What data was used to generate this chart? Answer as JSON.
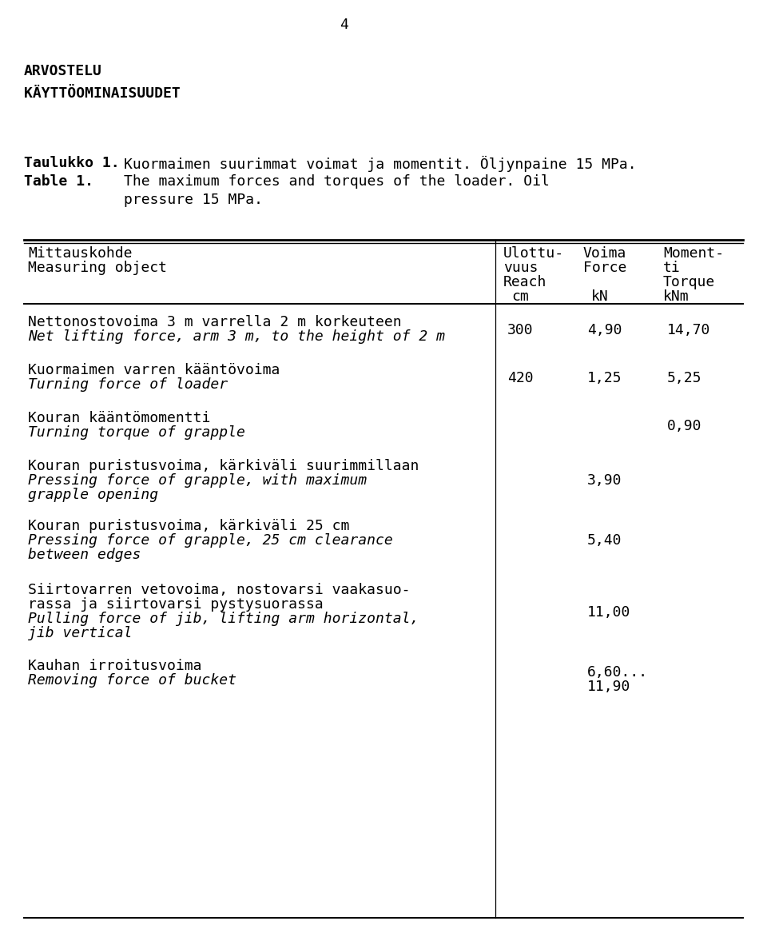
{
  "page_number": "4",
  "header1": "ARVOSTELU",
  "header2": "KÄYTTÖOMINAISUUDET",
  "table_label_fi": "Taulukko 1.",
  "table_label_en": "Table 1.",
  "table_desc_fi": "Kuormaimen suurimmat voimat ja momentit. Öljynpaine 15 MPa.",
  "table_desc_en1": "The maximum forces and torques of the loader. Oil",
  "table_desc_en2": "pressure 15 MPa.",
  "col_header_left1": "Mittauskohde",
  "col_header_left2": "Measuring object",
  "col_header_mid1": "Ulottu-",
  "col_header_mid2": "vuus",
  "col_header_mid3": "Reach",
  "col_header_mid4": "cm",
  "col_header_force1": "Voima",
  "col_header_force2": "Force",
  "col_header_force3": "kN",
  "col_header_moment1": "Moment-",
  "col_header_moment2": "ti",
  "col_header_moment3": "Torque",
  "col_header_moment4": "kNm",
  "rows": [
    {
      "desc_fi": "Nettonostovoima 3 m varrella 2 m korkeuteen",
      "desc_en": "Net lifting force, arm 3 m, to the height of 2 m",
      "reach": "300",
      "force": "4,90",
      "moment": "14,70"
    },
    {
      "desc_fi": "Kuormaimen varren kääntövoima",
      "desc_en": "Turning force of loader",
      "reach": "420",
      "force": "1,25",
      "moment": "5,25"
    },
    {
      "desc_fi": "Kouran kääntömomentti",
      "desc_en": "Turning torque of grapple",
      "reach": "",
      "force": "",
      "moment": "0,90"
    },
    {
      "desc_fi": "Kouran puristusvoima, kärkiväli suurimmillaan",
      "desc_en1": "Pressing force of grapple, with maximum",
      "desc_en2": "grapple opening",
      "reach": "",
      "force": "3,90",
      "moment": ""
    },
    {
      "desc_fi": "Kouran puristusvoima, kärkiväli 25 cm",
      "desc_en1": "Pressing force of grapple, 25 cm clearance",
      "desc_en2": "between edges",
      "reach": "",
      "force": "5,40",
      "moment": ""
    },
    {
      "desc_fi1": "Siirtovarren vetovoima, nostovarsi vaakasuo-",
      "desc_fi2": "rassa ja siirtovarsi pystysuorassa",
      "desc_en1": "Pulling force of jib, lifting arm horizontal,",
      "desc_en2": "jib vertical",
      "reach": "",
      "force": "11,00",
      "moment": ""
    },
    {
      "desc_fi": "Kauhan irroitusvoima",
      "desc_en": "Removing force of bucket",
      "reach": "",
      "force1": "6,60...",
      "force2": "11,90",
      "moment": ""
    }
  ],
  "bg_color": "#ffffff",
  "text_color": "#000000"
}
